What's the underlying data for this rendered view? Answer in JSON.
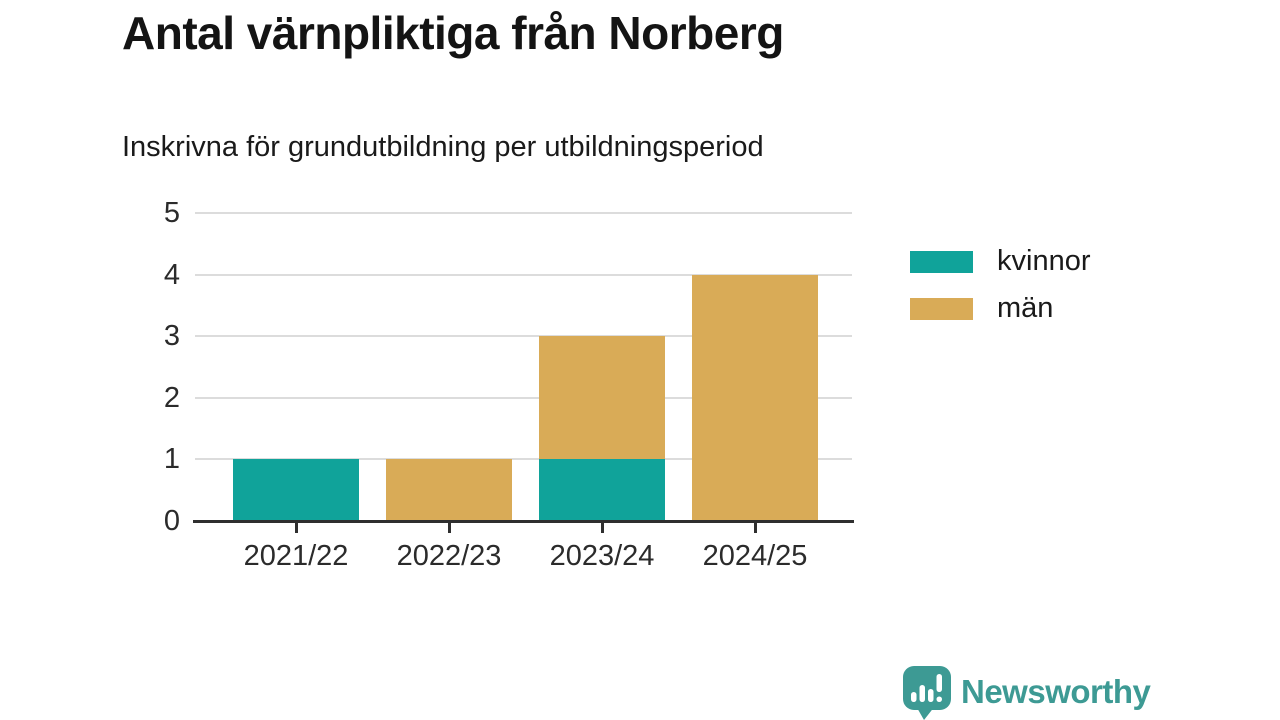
{
  "chart_data": {
    "type": "bar",
    "stacked": true,
    "title": "Antal värnpliktiga från Norberg",
    "subtitle": "Inskrivna för grundutbildning per utbildningsperiod",
    "categories": [
      "2021/22",
      "2022/23",
      "2023/24",
      "2024/25"
    ],
    "series": [
      {
        "name": "kvinnor",
        "color": "#10a39a",
        "values": [
          1,
          0,
          1,
          0
        ]
      },
      {
        "name": "män",
        "color": "#d9ab57",
        "values": [
          0,
          1,
          2,
          4
        ]
      }
    ],
    "totals": [
      1,
      1,
      3,
      4
    ],
    "xlabel": "",
    "ylabel": "",
    "ylim": [
      0,
      5
    ],
    "yticks": [
      0,
      1,
      2,
      3,
      4,
      5
    ],
    "grid": true,
    "legend_position": "right",
    "grid_color": "#dcdcdc",
    "axis_color": "#2f2f2f",
    "tick_label_color": "#2b2b2b"
  },
  "footer": {
    "brand": "Newsworthy",
    "brand_color": "#3d9a94",
    "logo_icon": "speech-bubble-bar-chart-icon"
  }
}
